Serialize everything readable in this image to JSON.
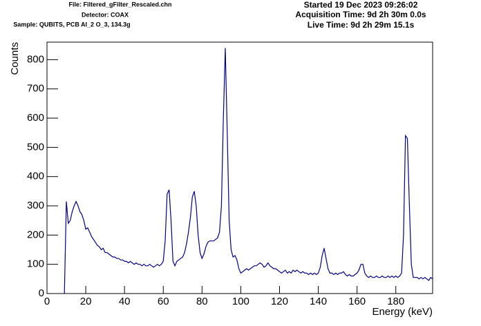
{
  "chart_data": {
    "type": "line",
    "header_left": [
      "File: Filtered_gFilter_Rescaled.chn",
      "Detector: COAX",
      "Sample: QUBITS, PCB Al_2 O_3, 134.3g"
    ],
    "header_right": [
      "Started 19 Dec 2023 09:26:02",
      "Acquisition Time: 9d 2h 30m 0.0s",
      "Live Time: 9d 2h 29m 15.1s"
    ],
    "xlabel": "Energy (keV)",
    "ylabel": "Counts",
    "xlim": [
      0,
      199
    ],
    "ylim": [
      0,
      860
    ],
    "xticks": [
      0,
      20,
      40,
      60,
      80,
      100,
      120,
      140,
      160,
      180
    ],
    "yticks": [
      0,
      100,
      200,
      300,
      400,
      500,
      600,
      700,
      800
    ],
    "series": [
      {
        "color": "#000080",
        "x": [
          9,
          10,
          11,
          12,
          13,
          14,
          15,
          16,
          17,
          18,
          19,
          20,
          21,
          22,
          23,
          24,
          25,
          26,
          27,
          28,
          29,
          30,
          31,
          32,
          33,
          34,
          35,
          36,
          37,
          38,
          39,
          40,
          41,
          42,
          43,
          44,
          45,
          46,
          47,
          48,
          49,
          50,
          51,
          52,
          53,
          54,
          55,
          56,
          57,
          58,
          59,
          60,
          61,
          62,
          63,
          64,
          65,
          66,
          67,
          68,
          69,
          70,
          71,
          72,
          73,
          74,
          75,
          76,
          77,
          78,
          79,
          80,
          81,
          82,
          83,
          84,
          85,
          86,
          87,
          88,
          89,
          90,
          91,
          92,
          93,
          94,
          95,
          96,
          97,
          98,
          99,
          100,
          101,
          102,
          103,
          104,
          105,
          106,
          107,
          108,
          109,
          110,
          111,
          112,
          113,
          114,
          115,
          116,
          117,
          118,
          119,
          120,
          121,
          122,
          123,
          124,
          125,
          126,
          127,
          128,
          129,
          130,
          131,
          132,
          133,
          134,
          135,
          136,
          137,
          138,
          139,
          140,
          141,
          142,
          143,
          144,
          145,
          146,
          147,
          148,
          149,
          150,
          151,
          152,
          153,
          154,
          155,
          156,
          157,
          158,
          159,
          160,
          161,
          162,
          163,
          164,
          165,
          166,
          167,
          168,
          169,
          170,
          171,
          172,
          173,
          174,
          175,
          176,
          177,
          178,
          179,
          180,
          181,
          182,
          183,
          184,
          185,
          186,
          187,
          188,
          189,
          190,
          191,
          192,
          193,
          194,
          195,
          196,
          197,
          198,
          199
        ],
        "values": [
          0,
          315,
          240,
          250,
          280,
          300,
          315,
          300,
          280,
          270,
          250,
          220,
          225,
          210,
          195,
          185,
          175,
          165,
          160,
          150,
          155,
          140,
          140,
          135,
          130,
          125,
          125,
          120,
          120,
          115,
          115,
          110,
          110,
          105,
          110,
          105,
          100,
          105,
          100,
          100,
          95,
          100,
          95,
          95,
          100,
          95,
          90,
          95,
          100,
          95,
          100,
          110,
          180,
          340,
          355,
          250,
          110,
          95,
          110,
          115,
          120,
          125,
          140,
          170,
          210,
          260,
          330,
          350,
          300,
          200,
          140,
          120,
          135,
          160,
          175,
          180,
          180,
          180,
          185,
          190,
          210,
          300,
          600,
          840,
          550,
          250,
          150,
          125,
          130,
          115,
          85,
          70,
          75,
          80,
          85,
          80,
          85,
          90,
          95,
          95,
          100,
          105,
          100,
          90,
          95,
          105,
          95,
          90,
          85,
          85,
          80,
          75,
          70,
          75,
          80,
          70,
          75,
          70,
          80,
          75,
          80,
          75,
          70,
          75,
          70,
          70,
          65,
          70,
          65,
          70,
          65,
          70,
          90,
          130,
          155,
          120,
          85,
          70,
          70,
          65,
          70,
          65,
          70,
          70,
          75,
          65,
          60,
          65,
          60,
          60,
          65,
          70,
          80,
          100,
          100,
          70,
          60,
          55,
          60,
          55,
          55,
          60,
          55,
          55,
          60,
          55,
          55,
          60,
          55,
          60,
          55,
          60,
          55,
          60,
          70,
          200,
          540,
          530,
          300,
          100,
          55,
          55,
          55,
          50,
          55,
          50,
          55,
          50,
          45,
          55,
          50
        ]
      }
    ]
  }
}
